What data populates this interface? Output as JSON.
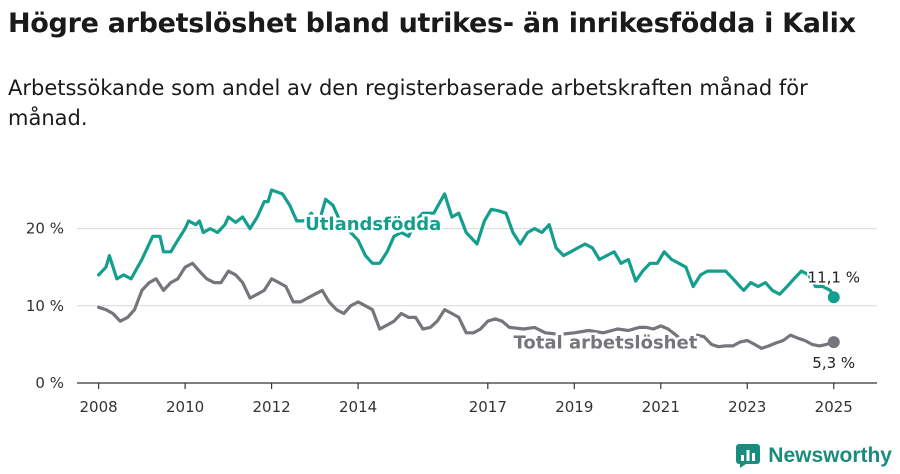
{
  "header": {
    "title": "Högre arbetslöshet bland utrikes- än inrikesfödda i Kalix",
    "subtitle": "Arbetssökande som andel av den registerbaserade arbetskraften månad för månad."
  },
  "branding": {
    "logo_icon": "newsworthy-chart-icon",
    "name": "Newsworthy",
    "color": "#1a8c7e"
  },
  "chart_data": {
    "type": "line",
    "title": "Högre arbetslöshet bland utrikes- än inrikesfödda i Kalix",
    "subtitle": "Arbetssökande som andel av den registerbaserade arbetskraften månad för månad.",
    "xlabel": "",
    "ylabel": "",
    "xlim": [
      2007.5,
      2026.0
    ],
    "ylim": [
      0,
      25
    ],
    "x_ticks": [
      2008,
      2010,
      2012,
      2014,
      2017,
      2019,
      2021,
      2023,
      2025
    ],
    "y_ticks": [
      0,
      10,
      20
    ],
    "y_tick_labels": [
      "0 %",
      "10 %",
      "20 %"
    ],
    "grid": true,
    "series": [
      {
        "name": "Utlandsfödda",
        "color": "#139e8e",
        "end_label": "11,1 %",
        "end_value": 11.1,
        "points": [
          [
            2008.0,
            14.0
          ],
          [
            2008.17,
            15.0
          ],
          [
            2008.25,
            16.5
          ],
          [
            2008.42,
            13.5
          ],
          [
            2008.58,
            14.0
          ],
          [
            2008.75,
            13.5
          ],
          [
            2009.0,
            16.0
          ],
          [
            2009.25,
            19.0
          ],
          [
            2009.42,
            19.0
          ],
          [
            2009.5,
            17.0
          ],
          [
            2009.67,
            17.0
          ],
          [
            2009.83,
            18.5
          ],
          [
            2010.0,
            20.0
          ],
          [
            2010.08,
            21.0
          ],
          [
            2010.25,
            20.5
          ],
          [
            2010.33,
            21.0
          ],
          [
            2010.42,
            19.5
          ],
          [
            2010.58,
            20.0
          ],
          [
            2010.75,
            19.5
          ],
          [
            2010.92,
            20.5
          ],
          [
            2011.0,
            21.5
          ],
          [
            2011.17,
            20.8
          ],
          [
            2011.33,
            21.5
          ],
          [
            2011.5,
            20.0
          ],
          [
            2011.67,
            21.5
          ],
          [
            2011.83,
            23.5
          ],
          [
            2011.92,
            23.5
          ],
          [
            2012.0,
            25.0
          ],
          [
            2012.25,
            24.5
          ],
          [
            2012.42,
            23.0
          ],
          [
            2012.58,
            21.0
          ],
          [
            2012.75,
            21.0
          ],
          [
            2012.92,
            22.0
          ],
          [
            2013.08,
            20.5
          ],
          [
            2013.25,
            23.8
          ],
          [
            2013.42,
            23.0
          ],
          [
            2013.58,
            21.0
          ],
          [
            2013.83,
            19.5
          ],
          [
            2014.0,
            18.5
          ],
          [
            2014.17,
            16.5
          ],
          [
            2014.33,
            15.5
          ],
          [
            2014.5,
            15.5
          ],
          [
            2014.67,
            17.0
          ],
          [
            2014.83,
            19.0
          ],
          [
            2015.0,
            19.5
          ],
          [
            2015.17,
            19.0
          ],
          [
            2015.33,
            21.0
          ],
          [
            2015.5,
            22.0
          ],
          [
            2015.75,
            22.0
          ],
          [
            2016.0,
            24.5
          ],
          [
            2016.17,
            21.5
          ],
          [
            2016.33,
            22.0
          ],
          [
            2016.5,
            19.5
          ],
          [
            2016.75,
            18.0
          ],
          [
            2016.92,
            21.0
          ],
          [
            2017.08,
            22.5
          ],
          [
            2017.25,
            22.3
          ],
          [
            2017.42,
            22.0
          ],
          [
            2017.58,
            19.5
          ],
          [
            2017.75,
            18.0
          ],
          [
            2017.92,
            19.5
          ],
          [
            2018.08,
            20.0
          ],
          [
            2018.25,
            19.5
          ],
          [
            2018.42,
            20.5
          ],
          [
            2018.58,
            17.5
          ],
          [
            2018.75,
            16.5
          ],
          [
            2018.92,
            17.0
          ],
          [
            2019.08,
            17.5
          ],
          [
            2019.25,
            18.0
          ],
          [
            2019.42,
            17.5
          ],
          [
            2019.58,
            16.0
          ],
          [
            2019.75,
            16.5
          ],
          [
            2019.92,
            17.0
          ],
          [
            2020.08,
            15.5
          ],
          [
            2020.25,
            16.0
          ],
          [
            2020.42,
            13.2
          ],
          [
            2020.58,
            14.5
          ],
          [
            2020.75,
            15.5
          ],
          [
            2020.92,
            15.5
          ],
          [
            2021.08,
            17.0
          ],
          [
            2021.25,
            16.0
          ],
          [
            2021.42,
            15.5
          ],
          [
            2021.58,
            15.0
          ],
          [
            2021.75,
            12.5
          ],
          [
            2021.92,
            14.0
          ],
          [
            2022.08,
            14.5
          ],
          [
            2022.25,
            14.5
          ],
          [
            2022.5,
            14.5
          ],
          [
            2022.67,
            13.5
          ],
          [
            2022.83,
            12.5
          ],
          [
            2022.92,
            12.0
          ],
          [
            2023.08,
            13.0
          ],
          [
            2023.25,
            12.5
          ],
          [
            2023.42,
            13.0
          ],
          [
            2023.58,
            12.0
          ],
          [
            2023.75,
            11.5
          ],
          [
            2023.92,
            12.5
          ],
          [
            2024.08,
            13.5
          ],
          [
            2024.25,
            14.5
          ],
          [
            2024.42,
            14.0
          ],
          [
            2024.58,
            12.5
          ],
          [
            2024.75,
            12.5
          ],
          [
            2024.92,
            12.0
          ],
          [
            2025.0,
            11.1
          ]
        ]
      },
      {
        "name": "Total arbetslöshet",
        "color": "#76757b",
        "end_label": "5,3 %",
        "end_value": 5.3,
        "points": [
          [
            2008.0,
            9.8
          ],
          [
            2008.17,
            9.5
          ],
          [
            2008.33,
            9.0
          ],
          [
            2008.5,
            8.0
          ],
          [
            2008.67,
            8.5
          ],
          [
            2008.83,
            9.5
          ],
          [
            2009.0,
            12.0
          ],
          [
            2009.17,
            13.0
          ],
          [
            2009.33,
            13.5
          ],
          [
            2009.5,
            12.0
          ],
          [
            2009.67,
            13.0
          ],
          [
            2009.83,
            13.5
          ],
          [
            2010.0,
            15.0
          ],
          [
            2010.17,
            15.5
          ],
          [
            2010.33,
            14.5
          ],
          [
            2010.5,
            13.5
          ],
          [
            2010.67,
            13.0
          ],
          [
            2010.83,
            13.0
          ],
          [
            2011.0,
            14.5
          ],
          [
            2011.17,
            14.0
          ],
          [
            2011.33,
            13.0
          ],
          [
            2011.5,
            11.0
          ],
          [
            2011.67,
            11.5
          ],
          [
            2011.83,
            12.0
          ],
          [
            2012.0,
            13.5
          ],
          [
            2012.17,
            13.0
          ],
          [
            2012.33,
            12.5
          ],
          [
            2012.5,
            10.5
          ],
          [
            2012.67,
            10.5
          ],
          [
            2012.83,
            11.0
          ],
          [
            2013.0,
            11.5
          ],
          [
            2013.17,
            12.0
          ],
          [
            2013.33,
            10.5
          ],
          [
            2013.5,
            9.5
          ],
          [
            2013.67,
            9.0
          ],
          [
            2013.83,
            10.0
          ],
          [
            2014.0,
            10.5
          ],
          [
            2014.17,
            10.0
          ],
          [
            2014.33,
            9.5
          ],
          [
            2014.5,
            7.0
          ],
          [
            2014.67,
            7.5
          ],
          [
            2014.83,
            8.0
          ],
          [
            2015.0,
            9.0
          ],
          [
            2015.17,
            8.5
          ],
          [
            2015.33,
            8.5
          ],
          [
            2015.5,
            7.0
          ],
          [
            2015.67,
            7.2
          ],
          [
            2015.83,
            8.0
          ],
          [
            2016.0,
            9.5
          ],
          [
            2016.17,
            9.0
          ],
          [
            2016.33,
            8.5
          ],
          [
            2016.5,
            6.5
          ],
          [
            2016.67,
            6.5
          ],
          [
            2016.83,
            7.0
          ],
          [
            2017.0,
            8.0
          ],
          [
            2017.17,
            8.3
          ],
          [
            2017.33,
            8.0
          ],
          [
            2017.5,
            7.2
          ],
          [
            2017.83,
            7.0
          ],
          [
            2018.08,
            7.2
          ],
          [
            2018.33,
            6.5
          ],
          [
            2018.67,
            6.3
          ],
          [
            2019.0,
            6.5
          ],
          [
            2019.33,
            6.8
          ],
          [
            2019.67,
            6.5
          ],
          [
            2020.0,
            7.0
          ],
          [
            2020.25,
            6.8
          ],
          [
            2020.5,
            7.2
          ],
          [
            2020.67,
            7.2
          ],
          [
            2020.83,
            7.0
          ],
          [
            2021.0,
            7.4
          ],
          [
            2021.17,
            7.0
          ],
          [
            2021.33,
            6.3
          ],
          [
            2021.5,
            5.5
          ],
          [
            2021.67,
            5.8
          ],
          [
            2021.83,
            6.2
          ],
          [
            2022.0,
            6.0
          ],
          [
            2022.17,
            5.0
          ],
          [
            2022.33,
            4.7
          ],
          [
            2022.5,
            4.8
          ],
          [
            2022.67,
            4.8
          ],
          [
            2022.83,
            5.3
          ],
          [
            2023.0,
            5.5
          ],
          [
            2023.17,
            5.0
          ],
          [
            2023.33,
            4.5
          ],
          [
            2023.5,
            4.8
          ],
          [
            2023.67,
            5.2
          ],
          [
            2023.83,
            5.5
          ],
          [
            2024.0,
            6.2
          ],
          [
            2024.17,
            5.8
          ],
          [
            2024.33,
            5.5
          ],
          [
            2024.5,
            5.0
          ],
          [
            2024.67,
            4.8
          ],
          [
            2024.83,
            5.0
          ],
          [
            2025.0,
            5.3
          ]
        ]
      }
    ]
  }
}
